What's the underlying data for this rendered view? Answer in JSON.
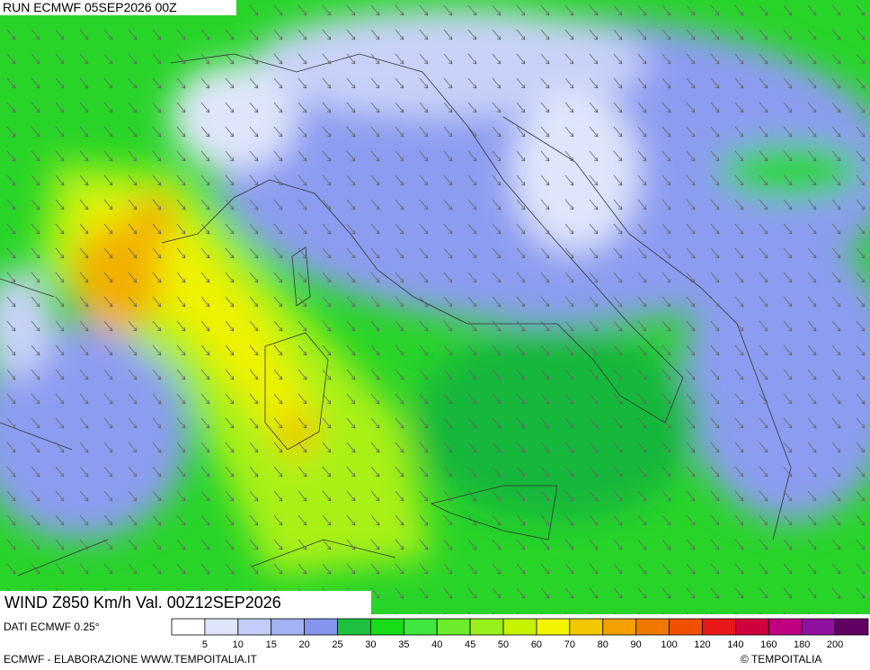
{
  "header": {
    "run": "RUN ECMWF 05SEP2026 00Z"
  },
  "map": {
    "title": "WIND Z850 Km/h Val. 00Z12SEP2026"
  },
  "legend": {
    "source": "DATI ECMWF 0.25°",
    "colors": [
      "#ffffff",
      "#dfe6fb",
      "#c2cdf8",
      "#a3b2f3",
      "#8595ee",
      "#1ec040",
      "#17dc17",
      "#3ee63e",
      "#6cec2a",
      "#98f01c",
      "#c6f400",
      "#f4f400",
      "#f4c800",
      "#f4a000",
      "#f07800",
      "#f05000",
      "#e81818",
      "#d0003c",
      "#c00080",
      "#9010a0",
      "#600060"
    ],
    "labels": [
      5,
      10,
      15,
      20,
      25,
      30,
      35,
      40,
      45,
      50,
      60,
      70,
      80,
      90,
      100,
      120,
      140,
      160,
      180,
      200
    ]
  },
  "footer": {
    "credit": "ECMWF - ELABORAZIONE WWW.TEMPOITALIA.IT",
    "copyright": "© TEMPOITALIA"
  }
}
